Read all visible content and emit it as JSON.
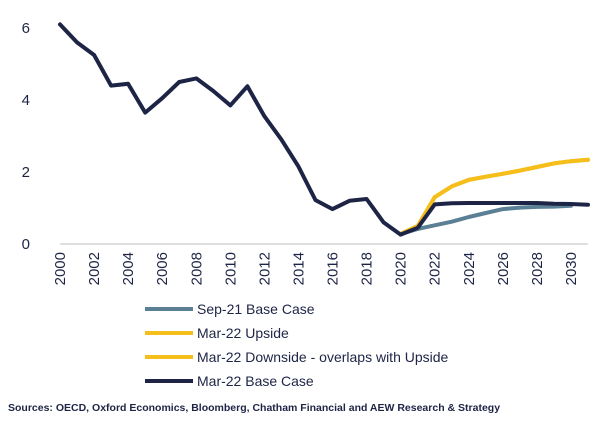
{
  "chart_data": {
    "type": "line",
    "title": "",
    "xlabel": "",
    "ylabel": "",
    "xlim": [
      2000,
      2031
    ],
    "ylim": [
      0,
      6.5
    ],
    "y_ticks": [
      "0",
      "2",
      "4",
      "6"
    ],
    "x_ticks": [
      "2000",
      "2002",
      "2004",
      "2006",
      "2008",
      "2010",
      "2012",
      "2014",
      "2016",
      "2018",
      "2020",
      "2022",
      "2024",
      "2026",
      "2028",
      "2030"
    ],
    "grid": false,
    "legend_position": "bottom",
    "series": [
      {
        "name": "Sep-21 Base Case",
        "color": "#5b7f95",
        "x": [
          2020,
          2021,
          2022,
          2023,
          2024,
          2025,
          2026,
          2027,
          2028,
          2029,
          2030
        ],
        "y": [
          0.28,
          0.42,
          0.52,
          0.62,
          0.75,
          0.86,
          0.97,
          1.01,
          1.03,
          1.04,
          1.06
        ]
      },
      {
        "name": "Mar-22 Upside",
        "color": "#f6be1a",
        "x": [
          2020,
          2021,
          2022,
          2023,
          2024,
          2025,
          2026,
          2027,
          2028,
          2029,
          2030,
          2031
        ],
        "y": [
          0.28,
          0.5,
          1.3,
          1.6,
          1.78,
          1.87,
          1.95,
          2.04,
          2.14,
          2.24,
          2.3,
          2.34
        ]
      },
      {
        "name": "Mar-22 Downside - overlaps with Upside",
        "color": "#f6be1a",
        "x": [
          2020,
          2021,
          2022,
          2023,
          2024,
          2025,
          2026,
          2027,
          2028,
          2029,
          2030,
          2031
        ],
        "y": [
          0.28,
          0.5,
          1.3,
          1.6,
          1.78,
          1.87,
          1.95,
          2.04,
          2.14,
          2.24,
          2.3,
          2.34
        ]
      },
      {
        "name": "Mar-22 Base Case",
        "color": "#1d2445",
        "x": [
          2000,
          2001,
          2002,
          2003,
          2004,
          2005,
          2006,
          2007,
          2008,
          2009,
          2010,
          2011,
          2012,
          2013,
          2014,
          2015,
          2016,
          2017,
          2018,
          2019,
          2020,
          2021,
          2022,
          2023,
          2024,
          2025,
          2026,
          2027,
          2028,
          2029,
          2030,
          2031
        ],
        "y": [
          6.1,
          5.6,
          5.25,
          4.4,
          4.45,
          3.65,
          4.05,
          4.5,
          4.6,
          4.25,
          3.85,
          4.38,
          3.55,
          2.9,
          2.15,
          1.22,
          0.97,
          1.2,
          1.25,
          0.6,
          0.26,
          0.45,
          1.1,
          1.13,
          1.14,
          1.14,
          1.14,
          1.14,
          1.14,
          1.12,
          1.11,
          1.09
        ]
      }
    ]
  },
  "footer": {
    "source": "Sources: OECD, Oxford Economics, Bloomberg, Chatham Financial and AEW Research & Strategy"
  }
}
